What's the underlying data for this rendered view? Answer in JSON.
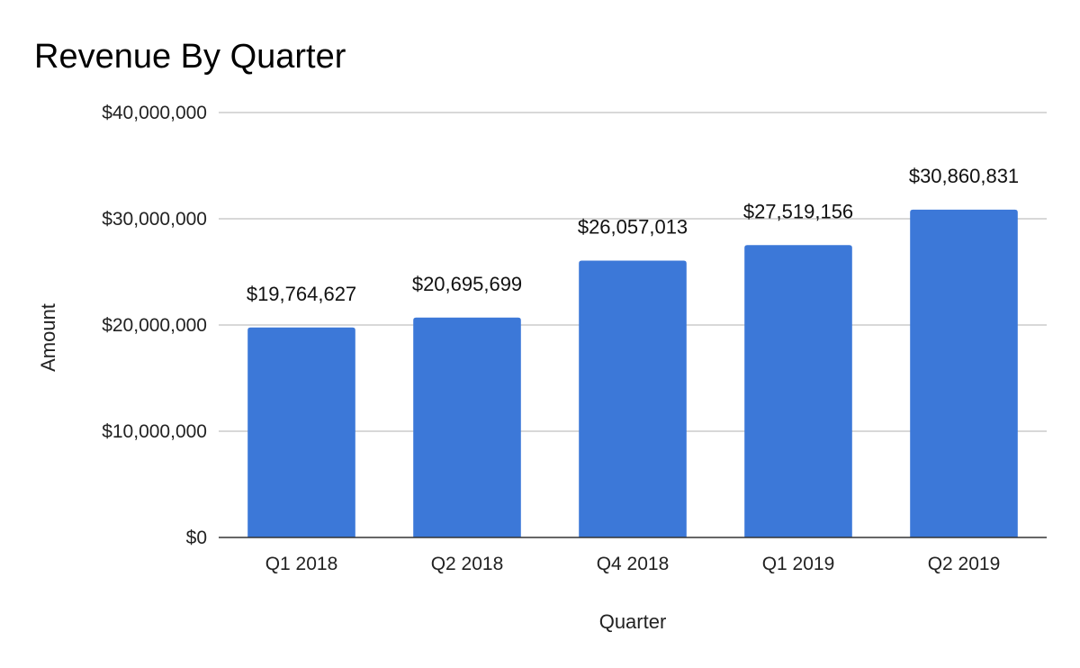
{
  "chart_data": {
    "type": "bar",
    "title": "Revenue By Quarter",
    "xlabel": "Quarter",
    "ylabel": "Amount",
    "categories": [
      "Q1 2018",
      "Q2 2018",
      "Q4 2018",
      "Q1 2019",
      "Q2 2019"
    ],
    "values": [
      19764627,
      20695699,
      26057013,
      27519156,
      30860831
    ],
    "data_labels": [
      "$19,764,627",
      "$20,695,699",
      "$26,057,013",
      "$27,519,156",
      "$30,860,831"
    ],
    "ylim": [
      0,
      40000000
    ],
    "yticks": [
      0,
      10000000,
      20000000,
      30000000,
      40000000
    ],
    "ytick_labels": [
      "$0",
      "$10,000,000",
      "$20,000,000",
      "$30,000,000",
      "$40,000,000"
    ],
    "grid": true,
    "legend": "none",
    "colors": {
      "bar": "#3c78d8",
      "grid": "#cccccc",
      "axis": "#333333"
    }
  }
}
